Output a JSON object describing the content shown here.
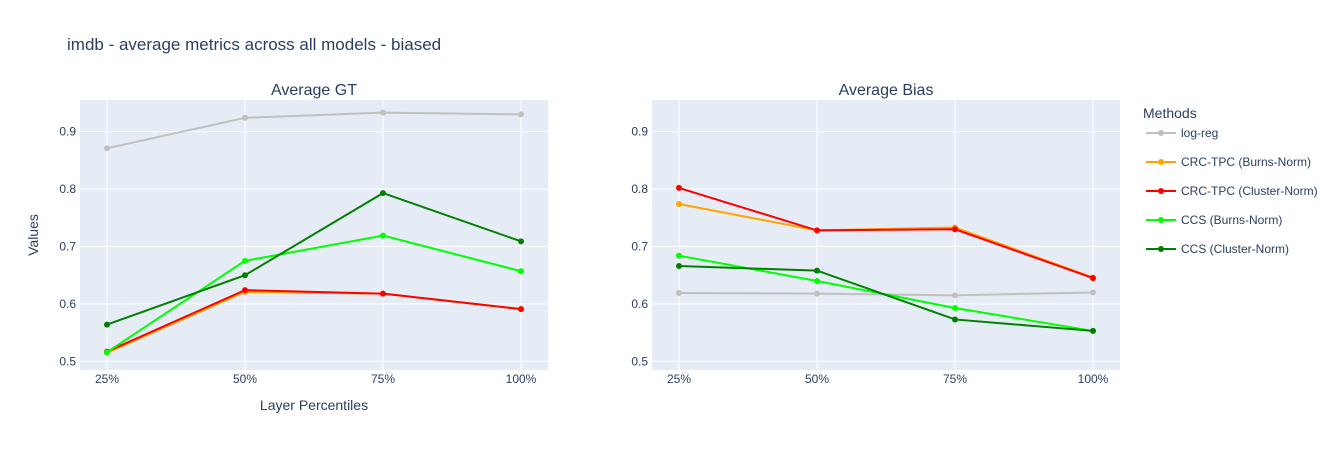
{
  "figure": {
    "title": "imdb - average metrics across all models - biased",
    "x_axis_label": "Layer Percentiles",
    "y_axis_label": "Values",
    "legend_title": "Methods"
  },
  "chart_data": {
    "type": "line",
    "categories": [
      "25%",
      "50%",
      "75%",
      "100%"
    ],
    "ylim": [
      0.485,
      0.955
    ],
    "yticks": [
      0.5,
      0.6,
      0.7,
      0.8,
      0.9
    ],
    "grid": true,
    "legend_placement": "right",
    "series_styles": [
      {
        "name": "log-reg",
        "color": "#c0c0c0"
      },
      {
        "name": "CRC-TPC (Burns-Norm)",
        "color": "#ffa500"
      },
      {
        "name": "CRC-TPC (Cluster-Norm)",
        "color": "#ff0000"
      },
      {
        "name": "CCS (Burns-Norm)",
        "color": "#00ff00"
      },
      {
        "name": "CCS (Cluster-Norm)",
        "color": "#008000"
      }
    ],
    "panels": [
      {
        "title": "Average GT",
        "series": [
          {
            "name": "log-reg",
            "values": [
              0.871,
              0.924,
              0.933,
              0.93
            ]
          },
          {
            "name": "CRC-TPC (Burns-Norm)",
            "values": [
              0.515,
              0.621,
              0.618,
              0.591
            ]
          },
          {
            "name": "CRC-TPC (Cluster-Norm)",
            "values": [
              0.517,
              0.624,
              0.618,
              0.591
            ]
          },
          {
            "name": "CCS (Burns-Norm)",
            "values": [
              0.516,
              0.675,
              0.719,
              0.657
            ]
          },
          {
            "name": "CCS (Cluster-Norm)",
            "values": [
              0.564,
              0.65,
              0.793,
              0.709
            ]
          }
        ]
      },
      {
        "title": "Average Bias",
        "series": [
          {
            "name": "log-reg",
            "values": [
              0.619,
              0.618,
              0.615,
              0.62
            ]
          },
          {
            "name": "CRC-TPC (Burns-Norm)",
            "values": [
              0.774,
              0.728,
              0.733,
              0.646
            ]
          },
          {
            "name": "CRC-TPC (Cluster-Norm)",
            "values": [
              0.802,
              0.728,
              0.73,
              0.645
            ]
          },
          {
            "name": "CCS (Burns-Norm)",
            "values": [
              0.684,
              0.64,
              0.593,
              0.553
            ]
          },
          {
            "name": "CCS (Cluster-Norm)",
            "values": [
              0.666,
              0.658,
              0.573,
              0.553
            ]
          }
        ]
      }
    ]
  }
}
